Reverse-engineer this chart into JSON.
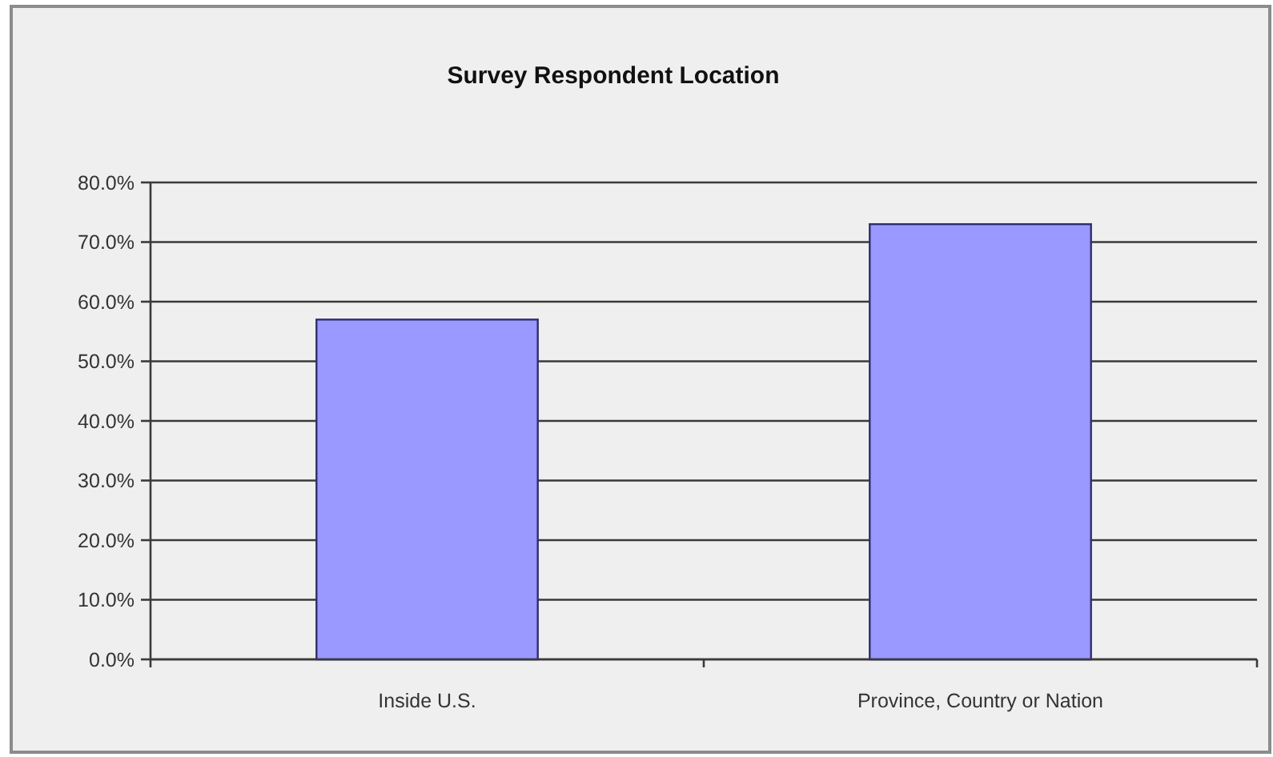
{
  "chart_data": {
    "type": "bar",
    "title": "Survey Respondent Location",
    "categories": [
      "Inside U.S.",
      "Province, Country or Nation"
    ],
    "values": [
      57,
      73
    ],
    "color": "#9999ff",
    "ylim": [
      0,
      80
    ],
    "yticks": [
      {
        "value": 0,
        "label": "0.0%"
      },
      {
        "value": 10,
        "label": "10.0%"
      },
      {
        "value": 20,
        "label": "20.0%"
      },
      {
        "value": 30,
        "label": "30.0%"
      },
      {
        "value": 40,
        "label": "40.0%"
      },
      {
        "value": 50,
        "label": "50.0%"
      },
      {
        "value": 60,
        "label": "60.0%"
      },
      {
        "value": 70,
        "label": "70.0%"
      },
      {
        "value": 80,
        "label": "80.0%"
      }
    ],
    "grid": "y"
  }
}
